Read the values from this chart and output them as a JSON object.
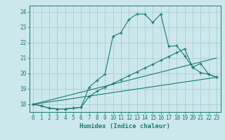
{
  "xlabel": "Humidex (Indice chaleur)",
  "bg_color": "#cce8ec",
  "grid_color": "#aacdd4",
  "line_color": "#1a7a72",
  "xlim": [
    -0.5,
    23.5
  ],
  "ylim": [
    17.5,
    24.4
  ],
  "yticks": [
    18,
    19,
    20,
    21,
    22,
    23,
    24
  ],
  "xticks": [
    0,
    1,
    2,
    3,
    4,
    5,
    6,
    7,
    8,
    9,
    10,
    11,
    12,
    13,
    14,
    15,
    16,
    17,
    18,
    19,
    20,
    21,
    22,
    23
  ],
  "curve1_x": [
    0,
    1,
    2,
    3,
    4,
    5,
    6,
    7,
    8,
    9,
    10,
    11,
    12,
    13,
    14,
    15,
    16,
    17,
    18,
    19,
    20,
    21,
    22,
    23
  ],
  "curve1_y": [
    18.0,
    17.9,
    17.75,
    17.7,
    17.7,
    17.75,
    17.8,
    19.1,
    19.55,
    19.95,
    22.4,
    22.65,
    23.5,
    23.85,
    23.85,
    23.3,
    23.85,
    21.75,
    21.8,
    21.15,
    20.4,
    20.65,
    19.95,
    19.75
  ],
  "curve2_x": [
    0,
    1,
    2,
    3,
    4,
    5,
    6,
    7,
    8,
    9,
    10,
    11,
    12,
    13,
    14,
    15,
    16,
    17,
    18,
    19,
    20,
    21,
    22,
    23
  ],
  "curve2_y": [
    18.0,
    17.9,
    17.75,
    17.7,
    17.7,
    17.75,
    17.8,
    18.5,
    18.85,
    19.1,
    19.35,
    19.6,
    19.85,
    20.1,
    20.35,
    20.6,
    20.85,
    21.1,
    21.35,
    21.6,
    20.4,
    20.05,
    19.95,
    19.75
  ],
  "line3_x": [
    0,
    23
  ],
  "line3_y": [
    18.0,
    19.75
  ],
  "line4_x": [
    0,
    23
  ],
  "line4_y": [
    18.0,
    21.0
  ]
}
